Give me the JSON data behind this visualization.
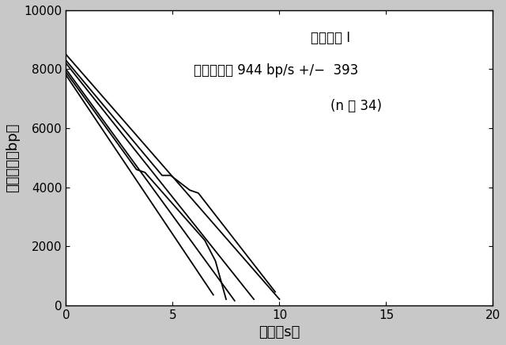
{
  "xlabel": "時間（s）",
  "ylabel": "テザー長（bp）",
  "xlim": [
    0,
    20
  ],
  "ylim": [
    0,
    10000
  ],
  "xticks": [
    0,
    5,
    10,
    15,
    20
  ],
  "yticks": [
    0,
    2000,
    4000,
    6000,
    8000,
    10000
  ],
  "ann1": "完全頭部 I",
  "ann2": "平均速度＝ 944 bp/s +/−  393",
  "ann3": "(n ＝ 34)",
  "fig_bg": "#c8c8c8",
  "plot_bg": "#ffffff",
  "line_color": "#000000",
  "lines_x": [
    [
      0,
      10.0
    ],
    [
      0,
      8.8
    ],
    [
      0,
      7.9
    ],
    [
      0,
      6.9
    ],
    [
      0,
      4.5,
      4.9,
      5.8,
      6.2,
      9.8
    ],
    [
      0,
      3.3,
      3.7,
      6.5,
      7.0,
      7.5
    ]
  ],
  "lines_y": [
    [
      8500,
      200
    ],
    [
      8200,
      200
    ],
    [
      8000,
      150
    ],
    [
      7800,
      350
    ],
    [
      8300,
      4400,
      4400,
      3900,
      3800,
      450
    ],
    [
      7900,
      4600,
      4500,
      2200,
      1500,
      200
    ]
  ]
}
